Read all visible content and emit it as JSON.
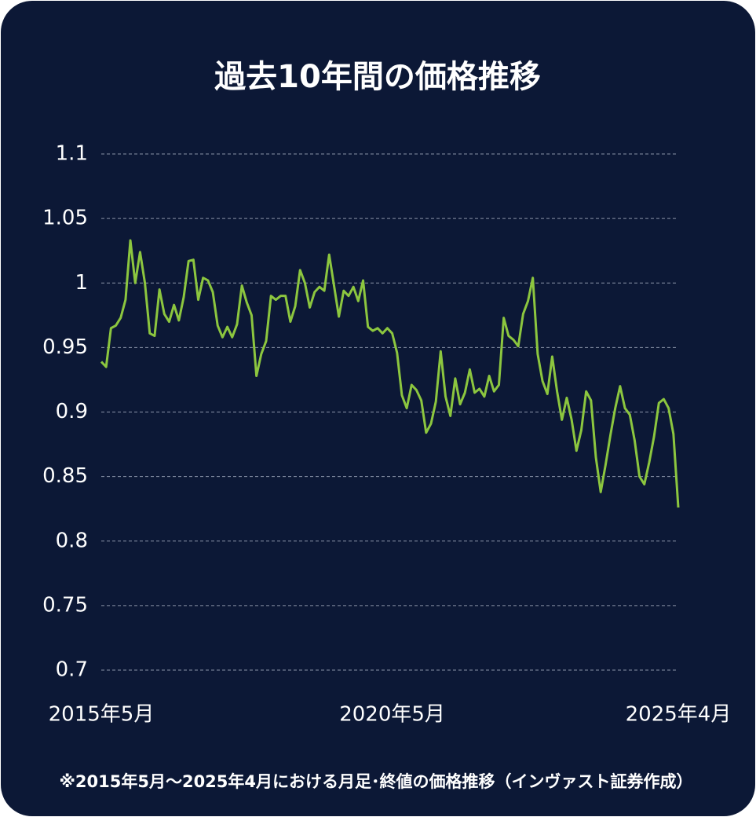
{
  "chart_data": {
    "type": "line",
    "title": "過去10年間の価格推移",
    "note": "※2015年5月～2025年4月における月足･終値の価格推移（インヴァスト証券作成）",
    "categories": [
      "2015年5月",
      null,
      null,
      null,
      null,
      null,
      null,
      null,
      null,
      null,
      null,
      null,
      null,
      null,
      null,
      null,
      null,
      null,
      null,
      null,
      null,
      null,
      null,
      null,
      null,
      null,
      null,
      null,
      null,
      null,
      null,
      null,
      null,
      null,
      null,
      null,
      null,
      null,
      null,
      null,
      null,
      null,
      null,
      null,
      null,
      null,
      null,
      null,
      null,
      null,
      null,
      null,
      null,
      null,
      null,
      null,
      null,
      null,
      null,
      null,
      "2020年5月",
      null,
      null,
      null,
      null,
      null,
      null,
      null,
      null,
      null,
      null,
      null,
      null,
      null,
      null,
      null,
      null,
      null,
      null,
      null,
      null,
      null,
      null,
      null,
      null,
      null,
      null,
      null,
      null,
      null,
      null,
      null,
      null,
      null,
      null,
      null,
      null,
      null,
      null,
      null,
      null,
      null,
      null,
      null,
      null,
      null,
      null,
      null,
      null,
      null,
      null,
      null,
      null,
      null,
      null,
      null,
      null,
      null,
      null,
      "2025年4月"
    ],
    "values": [
      0.939,
      0.935,
      0.965,
      0.967,
      0.973,
      0.987,
      1.033,
      1.0,
      1.024,
      1.0,
      0.961,
      0.959,
      0.995,
      0.976,
      0.97,
      0.983,
      0.971,
      0.989,
      1.017,
      1.018,
      0.987,
      1.004,
      1.002,
      0.993,
      0.967,
      0.958,
      0.966,
      0.958,
      0.968,
      0.998,
      0.985,
      0.975,
      0.928,
      0.945,
      0.955,
      0.99,
      0.987,
      0.99,
      0.99,
      0.97,
      0.982,
      1.01,
      1.0,
      0.981,
      0.993,
      0.997,
      0.994,
      1.022,
      0.998,
      0.974,
      0.994,
      0.99,
      0.997,
      0.986,
      1.002,
      0.966,
      0.963,
      0.965,
      0.961,
      0.965,
      0.961,
      0.946,
      0.913,
      0.903,
      0.921,
      0.917,
      0.909,
      0.884,
      0.891,
      0.908,
      0.947,
      0.912,
      0.897,
      0.926,
      0.906,
      0.915,
      0.933,
      0.915,
      0.918,
      0.912,
      0.928,
      0.916,
      0.921,
      0.973,
      0.959,
      0.956,
      0.951,
      0.976,
      0.986,
      1.004,
      0.945,
      0.924,
      0.914,
      0.943,
      0.916,
      0.894,
      0.911,
      0.894,
      0.87,
      0.886,
      0.916,
      0.909,
      0.865,
      0.838,
      0.859,
      0.882,
      0.903,
      0.92,
      0.903,
      0.898,
      0.878,
      0.85,
      0.844,
      0.861,
      0.881,
      0.907,
      0.91,
      0.903,
      0.883,
      0.826
    ],
    "color": "#8cc63f",
    "ylim": [
      0.7,
      1.1
    ],
    "yticks": [
      0.7,
      0.75,
      0.8,
      0.85,
      0.9,
      0.95,
      1,
      1.05,
      1.1
    ],
    "grid": true
  }
}
